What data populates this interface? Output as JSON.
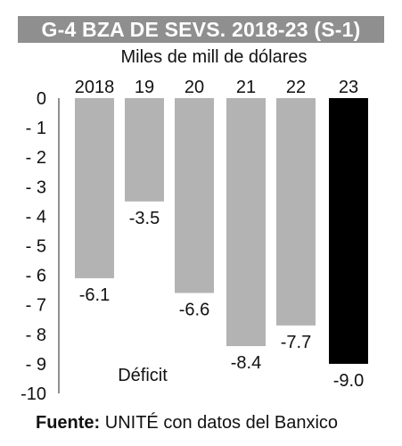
{
  "chart_data": {
    "type": "bar",
    "title": "G-4  BZA DE SEVS. 2018-23 (S-1)",
    "ylabel": "Miles de mill de dólares",
    "xlabel": "",
    "categories": [
      "2018",
      "19",
      "20",
      "21",
      "22",
      "23"
    ],
    "values": [
      -6.1,
      -3.5,
      -6.6,
      -8.4,
      -7.7,
      -9.0
    ],
    "value_labels": [
      "-6.1",
      "-3.5",
      "-6.6",
      "-8.4",
      "-7.7",
      "-9.0"
    ],
    "y_ticks": [
      "0",
      "- 1",
      "- 2",
      "- 3",
      "- 4",
      "- 5",
      "- 6",
      "- 7",
      "- 8",
      "- 9",
      "-10"
    ],
    "ylim": [
      -10,
      0
    ],
    "grid": false,
    "annotation": "Déficit",
    "source_label": "Fuente:",
    "source_text": " UNITÉ con datos del Banxico",
    "colors": {
      "bar": "#b3b3b3",
      "highlight_bar": "#000000",
      "title_bg": "#8f8f8f"
    },
    "highlight_index": 5
  }
}
